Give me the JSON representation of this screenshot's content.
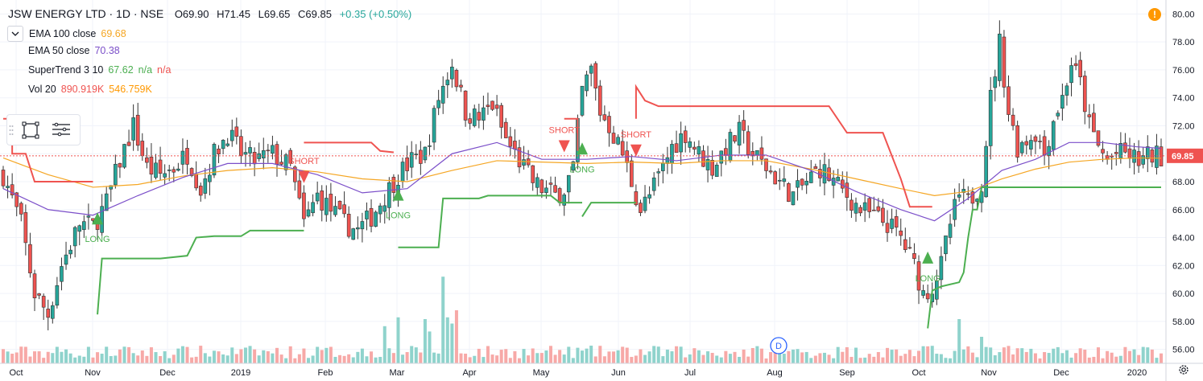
{
  "header": {
    "symbol": "JSW ENERGY LTD · 1D · NSE",
    "open": "O69.90",
    "high": "H71.45",
    "low": "L69.65",
    "close": "C69.85",
    "change": "+0.35 (+0.50%)"
  },
  "indicators": [
    {
      "label": "EMA 100 close",
      "values": [
        "69.68"
      ],
      "colors": [
        "#f5a623"
      ]
    },
    {
      "label": "EMA 50 close",
      "values": [
        "70.38"
      ],
      "colors": [
        "#7b4fc9"
      ]
    },
    {
      "label": "SuperTrend 3 10",
      "values": [
        "67.62",
        "n/a",
        "n/a"
      ],
      "colors": [
        "#4caf50",
        "#4caf50",
        "#ef5350"
      ]
    },
    {
      "label": "Vol 20",
      "values": [
        "890.919K",
        "546.759K"
      ],
      "colors": [
        "#ef5350",
        "#ff9800"
      ]
    }
  ],
  "icons": {
    "collapse": "chevron-down-icon",
    "grip": "grip-dots-icon",
    "rectangle": "rectangle-tool-icon",
    "menu": "hamburger-menu-icon",
    "alert": "alert-icon",
    "gear": "gear-icon"
  },
  "alert_mark": "!",
  "colors": {
    "up": "#26a69a",
    "down": "#ef5350",
    "ema100": "#f5a623",
    "ema50": "#7b4fc9",
    "st_up": "#4caf50",
    "st_down": "#ef5350"
  },
  "chart_data": {
    "type": "candlestick",
    "ylim": [
      55,
      81
    ],
    "y_ticks": [
      "56.00",
      "58.00",
      "60.00",
      "62.00",
      "64.00",
      "66.00",
      "68.00",
      "70.00",
      "72.00",
      "74.00",
      "76.00",
      "78.00",
      "80.00"
    ],
    "x_labels": [
      "Oct",
      "Nov",
      "Dec",
      "2019",
      "Feb",
      "Mar",
      "Apr",
      "May",
      "Jun",
      "Jul",
      "Aug",
      "Sep",
      "Oct",
      "Nov",
      "Dec",
      "2020"
    ],
    "last_price": "69.85",
    "close_path": [
      [
        0,
        68.5
      ],
      [
        8,
        65
      ],
      [
        14,
        60
      ],
      [
        20,
        58.5
      ],
      [
        26,
        62
      ],
      [
        34,
        65
      ],
      [
        40,
        64.8
      ],
      [
        46,
        66.5
      ],
      [
        52,
        69.5
      ],
      [
        58,
        72
      ],
      [
        64,
        69
      ],
      [
        70,
        68.5
      ],
      [
        76,
        69
      ],
      [
        82,
        70
      ],
      [
        88,
        67.5
      ],
      [
        94,
        70
      ],
      [
        100,
        71.5
      ],
      [
        106,
        70
      ],
      [
        112,
        69.5
      ],
      [
        120,
        70
      ],
      [
        128,
        69
      ],
      [
        134,
        65
      ],
      [
        140,
        67
      ],
      [
        146,
        66
      ],
      [
        152,
        65
      ],
      [
        158,
        64.5
      ],
      [
        164,
        65.5
      ],
      [
        170,
        67
      ],
      [
        176,
        68.5
      ],
      [
        182,
        69.5
      ],
      [
        188,
        70
      ],
      [
        194,
        74
      ],
      [
        200,
        76.5
      ],
      [
        206,
        73
      ],
      [
        212,
        72.5
      ],
      [
        218,
        73.5
      ],
      [
        224,
        71
      ],
      [
        230,
        69.5
      ],
      [
        236,
        68
      ],
      [
        240,
        67.5
      ],
      [
        246,
        67
      ],
      [
        250,
        67.5
      ],
      [
        254,
        69
      ],
      [
        258,
        74.5
      ],
      [
        262,
        76
      ],
      [
        266,
        73
      ],
      [
        270,
        72
      ],
      [
        276,
        70
      ],
      [
        280,
        68
      ],
      [
        284,
        66
      ],
      [
        288,
        67
      ],
      [
        294,
        69
      ],
      [
        298,
        70.5
      ],
      [
        304,
        71.5
      ],
      [
        310,
        70
      ],
      [
        316,
        69
      ],
      [
        322,
        70.5
      ],
      [
        328,
        71.5
      ],
      [
        334,
        70
      ],
      [
        340,
        69
      ],
      [
        346,
        68
      ],
      [
        352,
        67
      ],
      [
        358,
        68
      ],
      [
        364,
        69
      ],
      [
        370,
        68
      ],
      [
        376,
        67
      ],
      [
        382,
        66
      ],
      [
        388,
        65.5
      ],
      [
        394,
        65
      ],
      [
        400,
        64
      ],
      [
        406,
        62
      ],
      [
        410,
        60
      ],
      [
        414,
        60.5
      ],
      [
        418,
        62
      ],
      [
        422,
        65
      ],
      [
        426,
        67
      ],
      [
        430,
        66.5
      ],
      [
        436,
        68
      ],
      [
        440,
        74
      ],
      [
        444,
        78
      ],
      [
        448,
        73
      ],
      [
        452,
        70.5
      ],
      [
        456,
        71
      ],
      [
        460,
        71.5
      ],
      [
        464,
        70
      ],
      [
        468,
        72.5
      ],
      [
        472,
        74
      ],
      [
        476,
        76.5
      ],
      [
        480,
        75
      ],
      [
        484,
        72
      ],
      [
        488,
        70.5
      ],
      [
        492,
        69.5
      ],
      [
        496,
        70
      ],
      [
        500,
        70
      ],
      [
        506,
        69.5
      ],
      [
        512,
        69.9
      ],
      [
        516,
        69.85
      ]
    ],
    "candles_note": "OHLC bars, volume histogram, EMA 50, EMA 100 and SuperTrend series reconstructed from the visible chart",
    "ema50": [
      [
        0,
        67.5
      ],
      [
        20,
        66
      ],
      [
        40,
        65.6
      ],
      [
        60,
        67
      ],
      [
        80,
        68.3
      ],
      [
        100,
        69.3
      ],
      [
        120,
        69.3
      ],
      [
        140,
        68.5
      ],
      [
        160,
        67.2
      ],
      [
        180,
        67.5
      ],
      [
        200,
        70
      ],
      [
        220,
        70.8
      ],
      [
        240,
        69.6
      ],
      [
        260,
        69.6
      ],
      [
        280,
        69.8
      ],
      [
        300,
        69.5
      ],
      [
        320,
        69.9
      ],
      [
        340,
        69.9
      ],
      [
        360,
        68.8
      ],
      [
        380,
        67.3
      ],
      [
        400,
        66
      ],
      [
        415,
        65.2
      ],
      [
        430,
        66.8
      ],
      [
        445,
        68.8
      ],
      [
        460,
        69.6
      ],
      [
        475,
        70.8
      ],
      [
        490,
        70.8
      ],
      [
        505,
        70.5
      ],
      [
        516,
        70.38
      ]
    ],
    "ema100": [
      [
        0,
        69.7
      ],
      [
        20,
        68.5
      ],
      [
        40,
        67.6
      ],
      [
        60,
        67.8
      ],
      [
        80,
        68.4
      ],
      [
        100,
        68.8
      ],
      [
        120,
        69
      ],
      [
        140,
        68.7
      ],
      [
        160,
        68.2
      ],
      [
        180,
        68
      ],
      [
        200,
        68.8
      ],
      [
        220,
        69.5
      ],
      [
        240,
        69.4
      ],
      [
        260,
        69.3
      ],
      [
        280,
        69.4
      ],
      [
        300,
        69.3
      ],
      [
        320,
        69.5
      ],
      [
        340,
        69.5
      ],
      [
        360,
        68.9
      ],
      [
        380,
        68.2
      ],
      [
        400,
        67.5
      ],
      [
        415,
        67
      ],
      [
        430,
        67.3
      ],
      [
        445,
        68.2
      ],
      [
        460,
        68.9
      ],
      [
        475,
        69.4
      ],
      [
        490,
        69.6
      ],
      [
        505,
        69.7
      ],
      [
        516,
        69.68
      ]
    ],
    "supertrend": [
      {
        "trend": "down",
        "points": [
          [
            0,
            72.5
          ],
          [
            4,
            72.5
          ],
          [
            4,
            70
          ],
          [
            10,
            70
          ],
          [
            14,
            68
          ],
          [
            40,
            68
          ]
        ]
      },
      {
        "trend": "up",
        "points": [
          [
            42,
            58.5
          ],
          [
            44,
            62.5
          ],
          [
            70,
            62.5
          ],
          [
            82,
            62.7
          ],
          [
            86,
            64
          ],
          [
            94,
            64.1
          ],
          [
            106,
            64.1
          ],
          [
            110,
            64.5
          ],
          [
            134,
            64.5
          ]
        ]
      },
      {
        "trend": "down",
        "points": [
          [
            134,
            70.8
          ],
          [
            164,
            70.8
          ],
          [
            168,
            70.2
          ],
          [
            174,
            70.1
          ]
        ]
      },
      {
        "trend": "up",
        "points": [
          [
            176,
            63.3
          ],
          [
            194,
            63.3
          ],
          [
            196,
            66.8
          ],
          [
            212,
            66.8
          ],
          [
            216,
            67
          ],
          [
            244,
            67
          ],
          [
            248,
            66.5
          ],
          [
            258,
            66.5
          ]
        ]
      },
      {
        "trend": "down",
        "points": [
          [
            250,
            72.5
          ],
          [
            256,
            72.5
          ],
          [
            256,
            70.2
          ]
        ]
      },
      {
        "trend": "up",
        "points": [
          [
            258,
            65.5
          ],
          [
            262,
            66.5
          ],
          [
            282,
            66.5
          ]
        ]
      },
      {
        "trend": "down",
        "points": [
          [
            282,
            72.5
          ],
          [
            282,
            74.8
          ],
          [
            286,
            73.8
          ],
          [
            292,
            73.4
          ],
          [
            368,
            73.4
          ],
          [
            376,
            71.5
          ],
          [
            392,
            71.5
          ],
          [
            400,
            68.2
          ],
          [
            404,
            66.2
          ],
          [
            414,
            66.2
          ]
        ]
      },
      {
        "trend": "up",
        "points": [
          [
            412,
            57.5
          ],
          [
            414,
            60.2
          ],
          [
            418,
            60.5
          ],
          [
            426,
            60.8
          ],
          [
            428,
            61.5
          ],
          [
            430,
            64
          ],
          [
            432,
            66
          ],
          [
            434,
            66
          ],
          [
            436,
            67.6
          ],
          [
            516,
            67.6
          ]
        ]
      }
    ],
    "signals": [
      {
        "type": "long",
        "label": "LONG",
        "bar": 42,
        "price": 65.4
      },
      {
        "type": "short",
        "label": "SHORT",
        "bar": 134,
        "price": 68.3
      },
      {
        "type": "long",
        "label": "LONG",
        "bar": 176,
        "price": 67.1
      },
      {
        "type": "short",
        "label": "SHORT",
        "bar": 250,
        "price": 70.5
      },
      {
        "type": "long",
        "label": "LONG",
        "bar": 258,
        "price": 70.4
      },
      {
        "type": "short",
        "label": "SHORT",
        "bar": 282,
        "price": 70.2
      },
      {
        "type": "long",
        "label": "LONG",
        "bar": 412,
        "price": 62.6
      }
    ],
    "volume_spikes": [
      [
        170,
        0.42
      ],
      [
        176,
        0.52
      ],
      [
        188,
        0.5
      ],
      [
        190,
        0.36
      ],
      [
        196,
        0.98
      ],
      [
        198,
        0.52
      ],
      [
        200,
        0.45
      ],
      [
        202,
        0.6
      ],
      [
        426,
        0.5
      ],
      [
        436,
        0.3
      ]
    ],
    "event_badge": "D",
    "grid": true
  }
}
